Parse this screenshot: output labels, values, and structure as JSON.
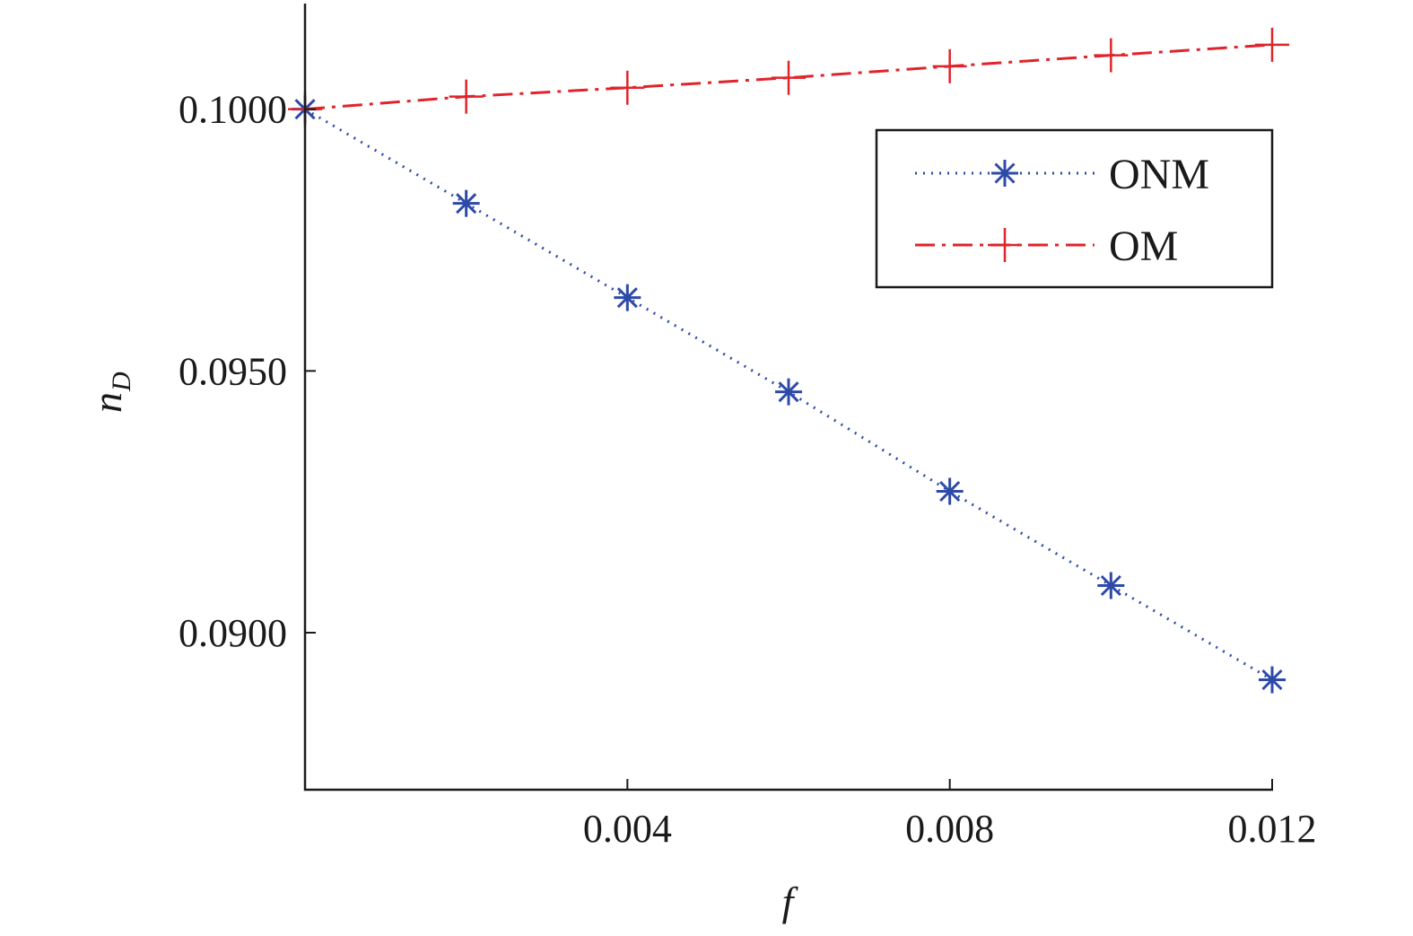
{
  "chart_data": {
    "type": "line",
    "title": "",
    "xlabel": "f",
    "ylabel_base": "n",
    "ylabel_sub": "D",
    "xlim": [
      0,
      0.012
    ],
    "ylim": [
      0.087,
      0.102
    ],
    "xticks": [
      0.004,
      0.008,
      0.012
    ],
    "xtick_labels": [
      "0.004",
      "0.008",
      "0.012"
    ],
    "yticks": [
      0.09,
      0.095,
      0.1
    ],
    "ytick_labels": [
      "0.0900",
      "0.0950",
      "0.1000"
    ],
    "grid": false,
    "legend_position": "top-right",
    "x": [
      0,
      0.002,
      0.004,
      0.006,
      0.008,
      0.01,
      0.012
    ],
    "series": [
      {
        "name": "ONM",
        "color": "#2e4aa8",
        "line": "dotted",
        "marker": "asterisk",
        "values": [
          0.1,
          0.0982,
          0.0964,
          0.0946,
          0.0927,
          0.0909,
          0.0891
        ]
      },
      {
        "name": "OM",
        "color": "#e0242b",
        "line": "dash-dot",
        "marker": "plus",
        "values": [
          0.1,
          0.10024,
          0.10041,
          0.1006,
          0.10082,
          0.10103,
          0.10123
        ]
      }
    ]
  }
}
